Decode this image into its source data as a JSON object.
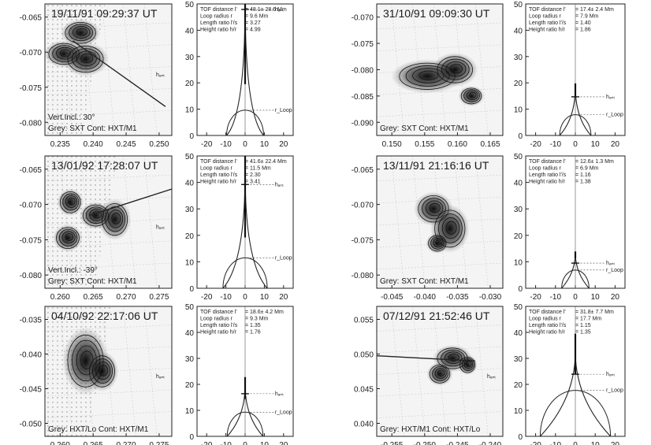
{
  "figure": {
    "rows": [
      {
        "left": {
          "image": {
            "timestamp": "19/11/91  09:29:37 UT",
            "x_ticks": [
              "0.235",
              "0.240",
              "0.245",
              "0.250"
            ],
            "y_ticks": [
              "-0.065",
              "-0.070",
              "-0.075",
              "-0.080"
            ],
            "vert_incl": "Vert.Incl.: 30°",
            "caption": "Grey: SXT  Cont: HXT/M1",
            "h_label": "hₐₙₜ"
          },
          "tof": {
            "labels": [
              "TOF distance l'",
              "Loop radius r",
              "Length ratio l'/s",
              "Height ratio h/r"
            ],
            "values": [
              "= 48.1± 28.6 Mm",
              "= 9.6 Mm",
              "= 3.27",
              "= 4.99"
            ],
            "h_label": "hₐₙₜ",
            "r_label": "r_Loop",
            "chart_data": {
              "type": "line",
              "x_ticks": [
                -20,
                -10,
                0,
                10,
                20
              ],
              "y_ticks": [
                0,
                10,
                20,
                30,
                40,
                50
              ],
              "loop_radius": 9.6,
              "tof_distance": 48.1,
              "tof_error": 28.6,
              "h_ant": 47.9
            }
          }
        },
        "right": {
          "image": {
            "timestamp": "31/10/91  09:09:30 UT",
            "x_ticks": [
              "0.150",
              "0.155",
              "0.160",
              "0.165"
            ],
            "y_ticks": [
              "-0.070",
              "-0.075",
              "-0.080",
              "-0.085",
              "-0.090"
            ],
            "vert_incl": "",
            "caption": "Grey: SXT  Cont: HXT/M1",
            "h_label": ""
          },
          "tof": {
            "labels": [
              "TOF distance l'",
              "Loop radius r",
              "Length ratio l'/s",
              "Height ratio h/r"
            ],
            "values": [
              "= 17.4± 2.4 Mm",
              "= 7.9 Mm",
              "= 1.40",
              "= 1.86"
            ],
            "h_label": "hₐₙₜ",
            "r_label": "r_Loop",
            "chart_data": {
              "type": "line",
              "x_ticks": [
                -20,
                -10,
                0,
                10,
                20
              ],
              "y_ticks": [
                0,
                10,
                20,
                30,
                40,
                50
              ],
              "loop_radius": 7.9,
              "tof_distance": 17.4,
              "tof_error": 2.4,
              "h_ant": 14.7
            }
          }
        }
      },
      {
        "left": {
          "image": {
            "timestamp": "13/01/92  17:28:07 UT",
            "x_ticks": [
              "0.260",
              "0.265",
              "0.270",
              "0.275"
            ],
            "y_ticks": [
              "-0.065",
              "-0.070",
              "-0.075",
              "-0.080"
            ],
            "vert_incl": "Vert.Incl.: -39°",
            "caption": "Grey: SXT  Cont: HXT/M1",
            "h_label": "hₐₙₜ"
          },
          "tof": {
            "labels": [
              "TOF distance l'",
              "Loop radius r",
              "Length ratio l'/s",
              "Height ratio h/r"
            ],
            "values": [
              "= 41.6± 22.4 Mm",
              "= 11.5 Mm",
              "= 2.30",
              "= 3.41"
            ],
            "h_label": "hₐₙₜ",
            "r_label": "r_Loop",
            "chart_data": {
              "type": "line",
              "x_ticks": [
                -20,
                -10,
                0,
                10,
                20
              ],
              "y_ticks": [
                0,
                10,
                20,
                30,
                40,
                50
              ],
              "loop_radius": 11.5,
              "tof_distance": 41.6,
              "tof_error": 22.4,
              "h_ant": 39.2
            }
          }
        },
        "right": {
          "image": {
            "timestamp": "13/11/91  21:16:16 UT",
            "x_ticks": [
              "-0.045",
              "-0.040",
              "-0.035",
              "-0.030"
            ],
            "y_ticks": [
              "-0.065",
              "-0.070",
              "-0.075",
              "-0.080"
            ],
            "vert_incl": "",
            "caption": "Grey: SXT  Cont: HXT/M1",
            "h_label": ""
          },
          "tof": {
            "labels": [
              "TOF distance l'",
              "Loop radius r",
              "Length ratio l'/s",
              "Height ratio h/r"
            ],
            "values": [
              "= 12.6± 1.3 Mm",
              "= 6.9 Mm",
              "= 1.16",
              "= 1.38"
            ],
            "h_label": "hₐₙₜ",
            "r_label": "r_Loop",
            "chart_data": {
              "type": "line",
              "x_ticks": [
                -20,
                -10,
                0,
                10,
                20
              ],
              "y_ticks": [
                0,
                10,
                20,
                30,
                40,
                50
              ],
              "loop_radius": 6.9,
              "tof_distance": 12.6,
              "tof_error": 1.3,
              "h_ant": 9.5
            }
          }
        }
      },
      {
        "left": {
          "image": {
            "timestamp": "04/10/92  22:17:06 UT",
            "x_ticks": [
              "0.260",
              "0.265",
              "0.270",
              "0.275"
            ],
            "y_ticks": [
              "-0.035",
              "-0.040",
              "-0.045",
              "-0.050"
            ],
            "vert_incl": "",
            "caption": "Grey: HXT/Lo  Cont: HXT/M1",
            "h_label": "hₐₙₜ"
          },
          "tof": {
            "labels": [
              "TOF distance l'",
              "Loop radius r",
              "Length ratio l'/s",
              "Height ratio h/r"
            ],
            "values": [
              "= 18.6± 4.2 Mm",
              "= 9.3 Mm",
              "= 1.35",
              "= 1.76"
            ],
            "h_label": "hₐₙₜ",
            "r_label": "r_Loop",
            "chart_data": {
              "type": "line",
              "x_ticks": [
                -20,
                -10,
                0,
                10,
                20
              ],
              "y_ticks": [
                0,
                10,
                20,
                30,
                40,
                50
              ],
              "loop_radius": 9.3,
              "tof_distance": 18.6,
              "tof_error": 4.2,
              "h_ant": 16.4
            }
          }
        },
        "right": {
          "image": {
            "timestamp": "07/12/91  21:52:46 UT",
            "x_ticks": [
              "-0.255",
              "-0.250",
              "-0.245",
              "-0.240"
            ],
            "y_ticks": [
              "0.055",
              "0.050",
              "0.045",
              "0.040"
            ],
            "vert_incl": "",
            "caption": "Grey: HXT/M1  Cont: HXT/Lo",
            "h_label": "hₐₙₜ"
          },
          "tof": {
            "labels": [
              "TOF distance l'",
              "Loop radius r",
              "Length ratio l'/s",
              "Height ratio h/r"
            ],
            "values": [
              "= 31.8± 7.7 Mm",
              "= 17.7 Mm",
              "= 1.15",
              "= 1.35"
            ],
            "h_label": "hₐₙₜ",
            "r_label": "r_Loop",
            "chart_data": {
              "type": "line",
              "x_ticks": [
                -20,
                -10,
                0,
                10,
                20
              ],
              "y_ticks": [
                0,
                10,
                20,
                30,
                40,
                50
              ],
              "loop_radius": 17.7,
              "tof_distance": 31.8,
              "tof_error": 7.7,
              "h_ant": 23.9
            }
          }
        }
      }
    ]
  }
}
